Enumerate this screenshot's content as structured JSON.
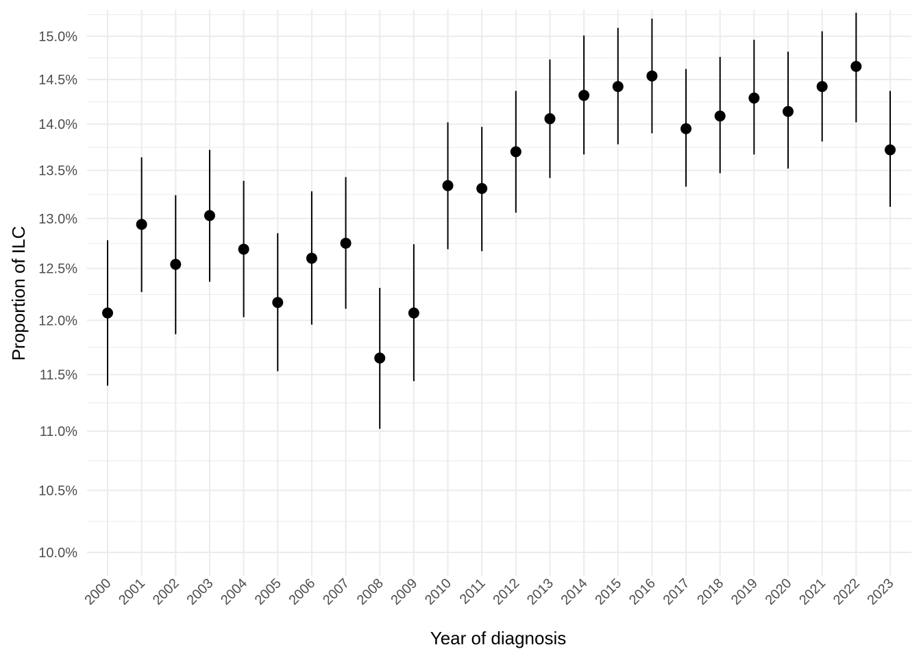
{
  "chart_data": {
    "type": "scatter",
    "title": "",
    "xlabel": "Year of diagnosis",
    "ylabel": "Proportion of ILC",
    "ylim": [
      9.9,
      15.25
    ],
    "y_scale": "log",
    "y_ticks": [
      10.0,
      10.5,
      11.0,
      11.5,
      12.0,
      12.5,
      13.0,
      13.5,
      14.0,
      14.5,
      15.0
    ],
    "y_tick_labels": [
      "10.0%",
      "10.5%",
      "11.0%",
      "11.5%",
      "12.0%",
      "12.5%",
      "13.0%",
      "13.5%",
      "14.0%",
      "14.5%",
      "15.0%"
    ],
    "grid": true,
    "legend": "none",
    "categories": [
      "2000",
      "2001",
      "2002",
      "2003",
      "2004",
      "2005",
      "2006",
      "2007",
      "2008",
      "2009",
      "2010",
      "2011",
      "2012",
      "2013",
      "2014",
      "2015",
      "2016",
      "2017",
      "2018",
      "2019",
      "2020",
      "2021",
      "2022",
      "2023"
    ],
    "series": [
      {
        "values": [
          12.07,
          12.94,
          12.54,
          13.03,
          12.69,
          12.17,
          12.6,
          12.75,
          11.65,
          12.07,
          13.34,
          13.31,
          13.7,
          14.06,
          14.32,
          14.42,
          14.54,
          13.95,
          14.09,
          14.29,
          14.14,
          14.42,
          14.65,
          13.72
        ],
        "lower": [
          11.4,
          12.27,
          11.87,
          12.37,
          12.03,
          11.53,
          11.96,
          12.11,
          11.02,
          11.44,
          12.69,
          12.67,
          13.06,
          13.42,
          13.67,
          13.78,
          13.9,
          13.33,
          13.47,
          13.67,
          13.52,
          13.81,
          14.02,
          13.12
        ],
        "upper": [
          12.78,
          13.64,
          13.24,
          13.72,
          13.39,
          12.85,
          13.28,
          13.43,
          12.31,
          12.74,
          14.02,
          13.97,
          14.37,
          14.73,
          15.01,
          15.1,
          15.21,
          14.62,
          14.76,
          14.96,
          14.82,
          15.06,
          15.28,
          14.37
        ]
      }
    ],
    "point_color": "#000000",
    "grid_color": "#ebebeb"
  }
}
